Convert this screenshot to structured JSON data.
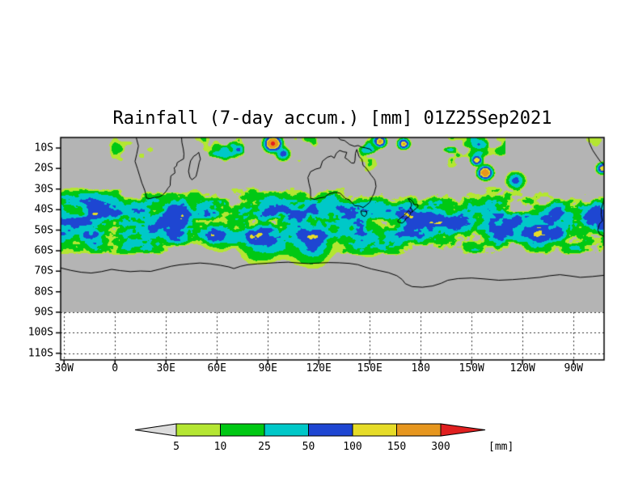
{
  "title": "Rainfall (7-day accum.) [mm] 01Z25Sep2021",
  "chart_data": {
    "type": "heatmap",
    "title": "Rainfall (7-day accum.) [mm] 01Z25Sep2021",
    "variable": "Rainfall (7-day accum.)",
    "unit": "mm",
    "valid_label": "01Z25Sep2021",
    "x_axis": {
      "tick_labels": [
        "30W",
        "0",
        "30E",
        "60E",
        "90E",
        "120E",
        "150E",
        "180",
        "150W",
        "120W",
        "90W"
      ],
      "tick_lons": [
        -30,
        0,
        30,
        60,
        90,
        120,
        150,
        180,
        210,
        240,
        270
      ],
      "lon_range": [
        -32,
        288
      ]
    },
    "y_axis": {
      "tick_labels": [
        "10S",
        "20S",
        "30S",
        "40S",
        "50S",
        "60S",
        "70S",
        "80S",
        "90S",
        "100S",
        "110S"
      ],
      "tick_lats": [
        -10,
        -20,
        -30,
        -40,
        -50,
        -60,
        -70,
        -80,
        -90,
        -100,
        -110
      ],
      "lat_top": -4.9,
      "lat_bottom": -113.2
    },
    "grid": {
      "style": "dotted",
      "white_zone_lats": [
        -90,
        -100,
        -110
      ]
    },
    "colorbar": {
      "levels": [
        5,
        10,
        25,
        50,
        100,
        150,
        300
      ],
      "unit_label": "[mm]"
    },
    "palette": {
      "no_data": "#b4b4b4",
      "below_min": "#dcdcdc",
      "bin_colors": [
        "#b4e632",
        "#00c814",
        "#00c8c8",
        "#1e46d2",
        "#e6dc28",
        "#e6961e",
        "#e02020"
      ]
    },
    "field": {
      "seed": 1337,
      "sx": 0.085,
      "sy": 0.15,
      "octaves": 4,
      "band_center": -46,
      "band_sigma": 12,
      "south_cut_start": -61,
      "south_cut_end": -67,
      "gain": 160,
      "threshold": 0.18,
      "power": 1.5,
      "trop": {
        "center": -11,
        "sigma": 4.5,
        "mask_threshold": 0.6,
        "gain": 90,
        "lon_window": [
          45,
          230
        ]
      }
    },
    "hotspots": [
      {
        "lon": 93,
        "lat": -8,
        "r": 3.5,
        "mm": 380
      },
      {
        "lon": 99,
        "lat": -13,
        "r": 3,
        "mm": 120
      },
      {
        "lon": 156,
        "lat": -7,
        "r": 2.5,
        "mm": 220
      },
      {
        "lon": 170,
        "lat": -8,
        "r": 2.5,
        "mm": 160
      },
      {
        "lon": 218,
        "lat": -22,
        "r": 3,
        "mm": 330
      },
      {
        "lon": 213,
        "lat": -16,
        "r": 2.5,
        "mm": 150
      },
      {
        "lon": 287,
        "lat": -20,
        "r": 2.5,
        "mm": 170
      },
      {
        "lon": 236,
        "lat": -26,
        "r": 4,
        "mm": 90
      },
      {
        "lon": 115,
        "lat": -55,
        "r": 12,
        "mm": 60
      },
      {
        "lon": 85,
        "lat": -56,
        "r": 10,
        "mm": 55
      },
      {
        "lon": 60,
        "lat": -52,
        "r": 9,
        "mm": 45
      },
      {
        "lon": 150,
        "lat": -53,
        "r": 9,
        "mm": 55
      },
      {
        "lon": 172,
        "lat": -44,
        "r": 6,
        "mm": 60
      },
      {
        "lon": 200,
        "lat": -46,
        "r": 8,
        "mm": 45
      },
      {
        "lon": 250,
        "lat": -49,
        "r": 9,
        "mm": 45
      },
      {
        "lon": 282,
        "lat": -44,
        "r": 6,
        "mm": 75
      },
      {
        "lon": 35,
        "lat": -47,
        "r": 8,
        "mm": 45
      },
      {
        "lon": -12,
        "lat": -40,
        "r": 7,
        "mm": 40
      },
      {
        "lon": 10,
        "lat": -52,
        "r": 8,
        "mm": 40
      }
    ],
    "coastlines": {
      "africa": [
        [
          12.5,
          -4.9
        ],
        [
          13.8,
          -9
        ],
        [
          12.8,
          -13
        ],
        [
          11.8,
          -16.5
        ],
        [
          13.2,
          -20
        ],
        [
          14.5,
          -23.5
        ],
        [
          15.8,
          -27
        ],
        [
          17.5,
          -30.5
        ],
        [
          18.3,
          -33
        ],
        [
          18.4,
          -34.3
        ],
        [
          20.5,
          -34.7
        ],
        [
          23,
          -34.1
        ],
        [
          25.7,
          -33.9
        ],
        [
          27.9,
          -33
        ],
        [
          30,
          -31.2
        ],
        [
          31.2,
          -29.6
        ],
        [
          32.5,
          -28.3
        ],
        [
          32.6,
          -26.2
        ],
        [
          32.9,
          -23.6
        ],
        [
          35.3,
          -22.2
        ],
        [
          35.1,
          -20.5
        ],
        [
          34.8,
          -19.7
        ],
        [
          36.3,
          -18.7
        ],
        [
          36.6,
          -17.2
        ],
        [
          38.2,
          -16.3
        ],
        [
          40.4,
          -15.3
        ],
        [
          40.6,
          -12.9
        ],
        [
          40.2,
          -10.4
        ],
        [
          39.4,
          -7.3
        ],
        [
          39.2,
          -4.9
        ]
      ],
      "madagascar": [
        [
          49.3,
          -12.1
        ],
        [
          50.3,
          -15.4
        ],
        [
          49.6,
          -17
        ],
        [
          48.7,
          -20.6
        ],
        [
          47.7,
          -23.9
        ],
        [
          45.3,
          -25.5
        ],
        [
          44.1,
          -24.2
        ],
        [
          43.3,
          -21.4
        ],
        [
          43.8,
          -19.1
        ],
        [
          44.5,
          -16.3
        ],
        [
          46.4,
          -14
        ],
        [
          48,
          -13.2
        ],
        [
          49.3,
          -12.1
        ]
      ],
      "australia": [
        [
          142.4,
          -10.7
        ],
        [
          141.6,
          -12.6
        ],
        [
          141.3,
          -16.1
        ],
        [
          140.8,
          -17.4
        ],
        [
          139.2,
          -17.3
        ],
        [
          136.9,
          -15.6
        ],
        [
          135.4,
          -14.8
        ],
        [
          136.5,
          -12.1
        ],
        [
          134.6,
          -11.9
        ],
        [
          132.3,
          -11.2
        ],
        [
          130.3,
          -12.6
        ],
        [
          129.1,
          -14.9
        ],
        [
          127.3,
          -13.9
        ],
        [
          125.1,
          -14.5
        ],
        [
          122.2,
          -16.4
        ],
        [
          120.9,
          -19.7
        ],
        [
          118.1,
          -20.3
        ],
        [
          115.1,
          -21.6
        ],
        [
          113.6,
          -24.4
        ],
        [
          114.2,
          -27.2
        ],
        [
          115.1,
          -30.2
        ],
        [
          115.2,
          -33.7
        ],
        [
          115.1,
          -34.4
        ],
        [
          117.6,
          -35.1
        ],
        [
          119.6,
          -34.5
        ],
        [
          123.6,
          -33.9
        ],
        [
          126.1,
          -32.3
        ],
        [
          129.6,
          -31.6
        ],
        [
          132.6,
          -32
        ],
        [
          135.6,
          -34.6
        ],
        [
          137.9,
          -35.2
        ],
        [
          139.6,
          -36.6
        ],
        [
          141.1,
          -38.1
        ],
        [
          144.1,
          -38.3
        ],
        [
          146.1,
          -39
        ],
        [
          148.1,
          -37.8
        ],
        [
          150.1,
          -36.4
        ],
        [
          151.4,
          -33.9
        ],
        [
          152.6,
          -32.1
        ],
        [
          153.7,
          -28.7
        ],
        [
          153.2,
          -26
        ],
        [
          152.5,
          -24.9
        ],
        [
          150.9,
          -23.3
        ],
        [
          149.4,
          -21.5
        ],
        [
          147.5,
          -19.4
        ],
        [
          146.1,
          -18.5
        ],
        [
          145.4,
          -15.5
        ],
        [
          143.7,
          -14.2
        ],
        [
          142.4,
          -10.7
        ]
      ],
      "tasmania": [
        [
          144.7,
          -40.7
        ],
        [
          148.3,
          -40.9
        ],
        [
          148.2,
          -42.2
        ],
        [
          147,
          -43.4
        ],
        [
          145.4,
          -42.7
        ],
        [
          144.7,
          -40.7
        ]
      ],
      "new_guinea": [
        [
          131.3,
          -4.9
        ],
        [
          132.8,
          -6
        ],
        [
          135.2,
          -6.4
        ],
        [
          138.1,
          -8.3
        ],
        [
          141,
          -9.2
        ],
        [
          143.2,
          -8.8
        ],
        [
          145.2,
          -9.6
        ],
        [
          147.8,
          -10
        ],
        [
          150.3,
          -10.6
        ],
        [
          151.1,
          -11.5
        ]
      ],
      "nz_north": [
        [
          172.7,
          -34.4
        ],
        [
          174.3,
          -35.2
        ],
        [
          175.5,
          -36.3
        ],
        [
          175.9,
          -37.5
        ],
        [
          178.3,
          -37.6
        ],
        [
          178.5,
          -38.5
        ],
        [
          177.1,
          -39.6
        ],
        [
          176,
          -40.3
        ],
        [
          174.7,
          -41.4
        ],
        [
          175.2,
          -40.3
        ],
        [
          174.6,
          -39.6
        ],
        [
          173.7,
          -39.2
        ],
        [
          174.7,
          -38
        ],
        [
          174.4,
          -36.8
        ],
        [
          173.1,
          -35.4
        ],
        [
          172.7,
          -34.4
        ]
      ],
      "nz_south": [
        [
          172.8,
          -40.5
        ],
        [
          174.2,
          -41.6
        ],
        [
          173.9,
          -42.5
        ],
        [
          172.9,
          -43.6
        ],
        [
          171.4,
          -44.2
        ],
        [
          170.6,
          -45.6
        ],
        [
          169,
          -46.6
        ],
        [
          166.7,
          -46.1
        ],
        [
          166.5,
          -45.3
        ],
        [
          168.2,
          -44.2
        ],
        [
          170.2,
          -42.9
        ],
        [
          171.4,
          -41.8
        ],
        [
          172.8,
          -40.5
        ]
      ],
      "south_america": [
        [
          278.9,
          -4.9
        ],
        [
          279.3,
          -7.5
        ],
        [
          281.2,
          -11
        ],
        [
          283.6,
          -14
        ],
        [
          286,
          -16.8
        ],
        [
          288.5,
          -18.6
        ],
        [
          289.8,
          -22
        ],
        [
          289.6,
          -26
        ],
        [
          288.6,
          -29.5
        ],
        [
          288.4,
          -33
        ],
        [
          287.5,
          -36.5
        ],
        [
          286.4,
          -39.5
        ],
        [
          286.3,
          -42.5
        ],
        [
          287,
          -45.5
        ],
        [
          285.3,
          -47
        ],
        [
          284.3,
          -50
        ],
        [
          285.5,
          -52
        ],
        [
          288.3,
          -53.3
        ],
        [
          291,
          -55
        ]
      ],
      "antarctica": [
        [
          -32,
          -68.4
        ],
        [
          -26,
          -69.6
        ],
        [
          -20,
          -70.5
        ],
        [
          -14,
          -70.9
        ],
        [
          -8,
          -70.2
        ],
        [
          -2,
          -69.1
        ],
        [
          3,
          -69.7
        ],
        [
          9,
          -70.2
        ],
        [
          15,
          -69.9
        ],
        [
          21,
          -70.1
        ],
        [
          27,
          -68.9
        ],
        [
          33,
          -67.6
        ],
        [
          38,
          -66.9
        ],
        [
          44,
          -66.4
        ],
        [
          50,
          -66
        ],
        [
          56,
          -66.4
        ],
        [
          62,
          -67.1
        ],
        [
          67,
          -67.9
        ],
        [
          70,
          -68.7
        ],
        [
          74,
          -67.6
        ],
        [
          78,
          -66.9
        ],
        [
          84,
          -66.4
        ],
        [
          90,
          -66.1
        ],
        [
          96,
          -65.8
        ],
        [
          102,
          -65.6
        ],
        [
          108,
          -66
        ],
        [
          114,
          -66.3
        ],
        [
          120,
          -66
        ],
        [
          126,
          -65.8
        ],
        [
          132,
          -65.9
        ],
        [
          138,
          -66.2
        ],
        [
          143,
          -66.8
        ],
        [
          147,
          -67.9
        ],
        [
          151,
          -68.9
        ],
        [
          156,
          -69.8
        ],
        [
          161,
          -70.7
        ],
        [
          166,
          -72.2
        ],
        [
          169,
          -74
        ],
        [
          171,
          -76.1
        ],
        [
          175,
          -77.5
        ],
        [
          181,
          -77.8
        ],
        [
          187,
          -77.2
        ],
        [
          192,
          -75.9
        ],
        [
          196,
          -74.4
        ],
        [
          202,
          -73.6
        ],
        [
          210,
          -73.3
        ],
        [
          218,
          -73.8
        ],
        [
          226,
          -74.4
        ],
        [
          234,
          -74.1
        ],
        [
          242,
          -73.6
        ],
        [
          250,
          -73
        ],
        [
          256,
          -72.2
        ],
        [
          262,
          -71.7
        ],
        [
          268,
          -72.3
        ],
        [
          274,
          -73
        ],
        [
          281,
          -72.6
        ],
        [
          288,
          -72
        ]
      ]
    }
  }
}
